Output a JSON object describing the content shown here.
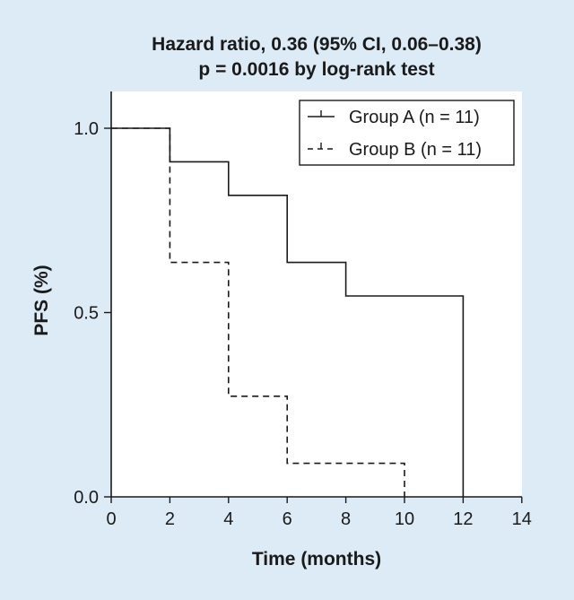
{
  "chart_data": {
    "type": "line",
    "subtype": "kaplan-meier",
    "title": "Hazard ratio, 0.36 (95% CI, 0.06–0.38)",
    "subtitle": "p = 0.0016 by log-rank test",
    "xlabel": "Time (months)",
    "ylabel": "PFS (%)",
    "xlim": [
      0,
      14
    ],
    "ylim": [
      0,
      1.0
    ],
    "xticks": [
      0,
      2,
      4,
      6,
      8,
      10,
      12,
      14
    ],
    "xtick_labels": [
      "0",
      "2",
      "4",
      "6",
      "8",
      "10",
      "12",
      "14"
    ],
    "yticks": [
      0,
      0.5,
      1.0
    ],
    "ytick_labels": [
      "0.0",
      "0.5",
      "1.0"
    ],
    "grid": false,
    "legend_position": "top-right",
    "series": [
      {
        "name": "Group A (n = 11)",
        "line_style": "solid",
        "x": [
          0,
          2,
          2,
          4,
          4,
          6,
          6,
          8,
          8,
          12,
          12
        ],
        "y": [
          1.0,
          1.0,
          0.909,
          0.909,
          0.818,
          0.818,
          0.636,
          0.636,
          0.545,
          0.545,
          0.0
        ]
      },
      {
        "name": "Group B (n = 11)",
        "line_style": "dashed",
        "x": [
          0,
          2,
          2,
          4,
          4,
          6,
          6,
          10,
          10
        ],
        "y": [
          1.0,
          1.0,
          0.636,
          0.636,
          0.273,
          0.273,
          0.091,
          0.091,
          0.0
        ]
      }
    ]
  },
  "colors": {
    "background": "#dcebf5",
    "plot_area": "#ffffff",
    "line": "#1a1a1a"
  }
}
